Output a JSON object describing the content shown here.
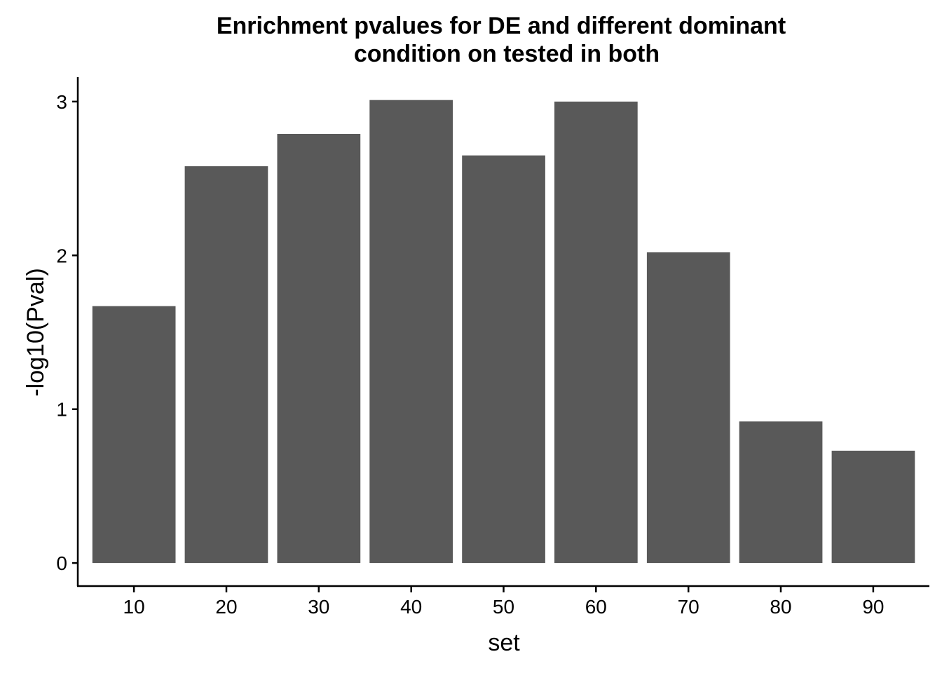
{
  "chart_data": {
    "type": "bar",
    "title_lines": [
      "Enrichment pvalues for DE and different dominant",
      "condition on tested in both"
    ],
    "xlabel": "set",
    "ylabel": "-log10(Pval)",
    "categories": [
      "10",
      "20",
      "30",
      "40",
      "50",
      "60",
      "70",
      "80",
      "90"
    ],
    "values": [
      1.67,
      2.58,
      2.79,
      3.01,
      2.65,
      3.0,
      2.02,
      0.92,
      0.73
    ],
    "ylim": [
      -0.15,
      3.15
    ],
    "y_ticks": [
      0,
      1,
      2,
      3
    ],
    "bar_color": "#595959",
    "grid": false,
    "legend": "none"
  }
}
